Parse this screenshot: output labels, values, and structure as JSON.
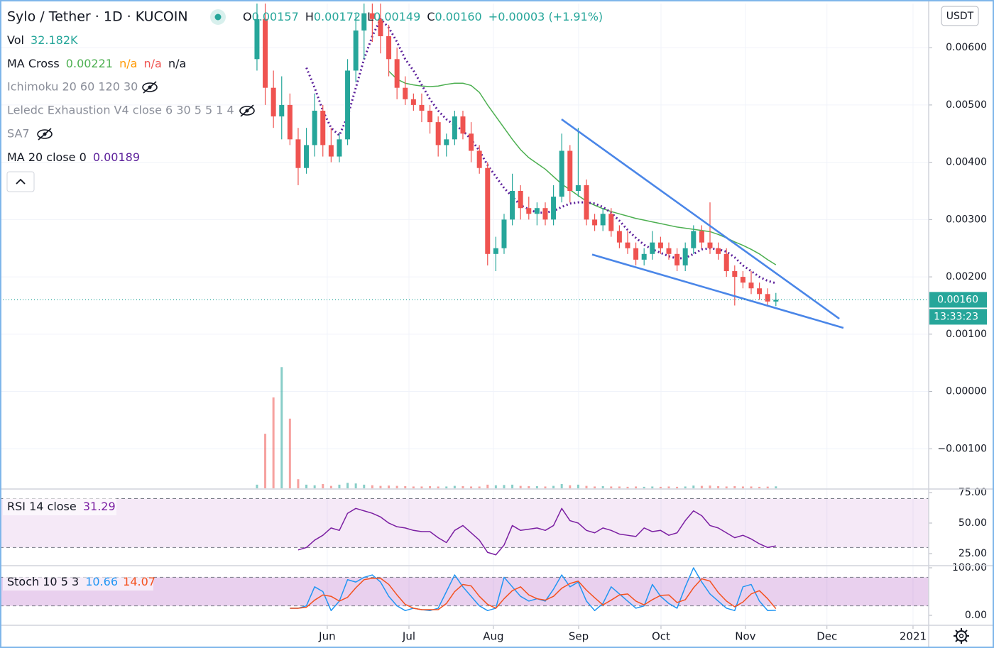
{
  "chart_data": [
    {
      "type": "candlestick",
      "title": "Sylo / Tether · 1D · KUCOIN",
      "ohlc": [
        {
          "label": "O",
          "value": "0.00157"
        },
        {
          "label": "H",
          "value": "0.00172"
        },
        {
          "label": "L",
          "value": "0.00149"
        },
        {
          "label": "C",
          "value": "0.00160"
        }
      ],
      "change": "+0.00003 (+1.91%)",
      "currency_button": "USDT",
      "countdown": "13:33:23",
      "categories": [
        null,
        null,
        null,
        null,
        null,
        null,
        null,
        null,
        null,
        null,
        null,
        null,
        null,
        null,
        null,
        null,
        null,
        null,
        null,
        null,
        null,
        null,
        null,
        null,
        null,
        null,
        null,
        null,
        null,
        null,
        null,
        null,
        null,
        null,
        null,
        null,
        null,
        null,
        null,
        null,
        null,
        null,
        null,
        null,
        null,
        null,
        null,
        null,
        null,
        null,
        null,
        null,
        null,
        null,
        null,
        null,
        null,
        null,
        null,
        null,
        null,
        null,
        null,
        null
      ],
      "open": [
        0.0058,
        0.0065,
        0.0053,
        0.0048,
        0.005,
        0.0044,
        0.0039,
        0.0043,
        0.0049,
        0.0043,
        0.0041,
        0.0044,
        0.0056,
        0.0063,
        0.0066,
        0.0065,
        0.0062,
        0.0058,
        0.0053,
        0.0051,
        0.005,
        0.0049,
        0.0047,
        0.0043,
        0.0044,
        0.0048,
        0.0045,
        0.0042,
        0.0039,
        0.0024,
        0.0025,
        0.003,
        0.0035,
        0.0032,
        0.0031,
        0.0032,
        0.003,
        0.0034,
        0.0042,
        0.0035,
        0.0036,
        0.003,
        0.0029,
        0.0031,
        0.0028,
        0.0026,
        0.0025,
        0.0023,
        0.0024,
        0.0026,
        0.0025,
        0.0024,
        0.0022,
        0.0025,
        0.0028,
        0.0026,
        0.0025,
        0.0024,
        0.0021,
        0.002,
        0.0019,
        0.0018,
        0.0017,
        0.00157
      ],
      "high": [
        0.0068,
        0.0068,
        0.0056,
        0.0055,
        0.0052,
        0.0046,
        0.0046,
        0.0052,
        0.005,
        0.0046,
        0.0045,
        0.0058,
        0.0066,
        0.0068,
        0.0068,
        0.0068,
        0.0064,
        0.006,
        0.0055,
        0.0052,
        0.0052,
        0.005,
        0.0048,
        0.0045,
        0.0049,
        0.0049,
        0.0047,
        0.0043,
        0.004,
        0.0027,
        0.0031,
        0.0038,
        0.0036,
        0.0034,
        0.0033,
        0.0033,
        0.0036,
        0.0045,
        0.0043,
        0.0046,
        0.0037,
        0.0031,
        0.0032,
        0.0032,
        0.0029,
        0.0028,
        0.0026,
        0.0025,
        0.0028,
        0.0027,
        0.0026,
        0.0025,
        0.0026,
        0.0029,
        0.0029,
        0.0033,
        0.0026,
        0.0025,
        0.0022,
        0.0021,
        0.0021,
        0.0019,
        0.0018,
        0.00172
      ],
      "low": [
        0.0056,
        0.005,
        0.0046,
        0.0044,
        0.0043,
        0.0036,
        0.0038,
        0.0041,
        0.0041,
        0.004,
        0.004,
        0.0043,
        0.0054,
        0.0058,
        0.0061,
        0.0059,
        0.0055,
        0.0051,
        0.005,
        0.0049,
        0.0047,
        0.0045,
        0.0041,
        0.0041,
        0.0043,
        0.0044,
        0.004,
        0.0038,
        0.0022,
        0.0021,
        0.0024,
        0.0029,
        0.003,
        0.003,
        0.0029,
        0.0029,
        0.0029,
        0.0033,
        0.0033,
        0.0034,
        0.0029,
        0.0028,
        0.0028,
        0.0027,
        0.0025,
        0.0024,
        0.0022,
        0.0022,
        0.0023,
        0.0024,
        0.0023,
        0.0021,
        0.0021,
        0.0024,
        0.0025,
        0.0024,
        0.0023,
        0.002,
        0.0015,
        0.0018,
        0.0017,
        0.0016,
        0.0015,
        0.00149
      ],
      "close": [
        0.0065,
        0.0053,
        0.0048,
        0.005,
        0.0044,
        0.0039,
        0.0043,
        0.0049,
        0.0043,
        0.0041,
        0.0044,
        0.0056,
        0.0063,
        0.0066,
        0.0065,
        0.0062,
        0.0058,
        0.0053,
        0.0051,
        0.005,
        0.0049,
        0.0047,
        0.0043,
        0.0044,
        0.0048,
        0.0045,
        0.0042,
        0.0039,
        0.0024,
        0.0025,
        0.003,
        0.0035,
        0.0032,
        0.0031,
        0.0032,
        0.003,
        0.0034,
        0.0042,
        0.0035,
        0.0036,
        0.003,
        0.0029,
        0.0031,
        0.0028,
        0.0026,
        0.0025,
        0.0023,
        0.0024,
        0.0026,
        0.0025,
        0.0024,
        0.0022,
        0.0025,
        0.0028,
        0.0026,
        0.0025,
        0.0024,
        0.0021,
        0.002,
        0.0019,
        0.0018,
        0.0017,
        0.00157,
        0.0016
      ],
      "up_color": "#26a69a",
      "down_color": "#ef5350",
      "volume": {
        "name": "Vol",
        "last_label": "32.182K",
        "vlim": [
          0,
          8000
        ],
        "values": [
          60,
          900,
          1500,
          2000,
          1150,
          150,
          60,
          50,
          70,
          40,
          60,
          90,
          80,
          60,
          50,
          40,
          45,
          40,
          35,
          30,
          30,
          35,
          30,
          30,
          40,
          35,
          30,
          30,
          60,
          50,
          55,
          60,
          40,
          35,
          35,
          30,
          40,
          70,
          50,
          60,
          40,
          30,
          35,
          30,
          30,
          25,
          30,
          25,
          30,
          25,
          30,
          25,
          30,
          45,
          40,
          45,
          35,
          30,
          35,
          30,
          30,
          25,
          28,
          32.182
        ]
      },
      "series": [
        {
          "name": "MA Cross",
          "color": "#4caf50",
          "style": "solid",
          "legend_values": [
            "0.00221",
            "n/a",
            "n/a",
            "n/a"
          ],
          "legend_colors": [
            "#4caf50",
            "#ff9800",
            "#ef5350",
            "#131722"
          ],
          "values": [
            null,
            null,
            null,
            null,
            null,
            null,
            null,
            null,
            null,
            null,
            null,
            null,
            null,
            null,
            null,
            null,
            0.00559,
            0.00545,
            0.00538,
            0.00535,
            0.00533,
            0.00532,
            0.00533,
            0.00536,
            0.00538,
            0.00538,
            0.00534,
            0.00522,
            0.005,
            0.0048,
            0.0046,
            0.0044,
            0.00422,
            0.00408,
            0.00398,
            0.00388,
            0.00375,
            0.00362,
            0.00352,
            0.00342,
            0.00332,
            0.00325,
            0.00319,
            0.00314,
            0.0031,
            0.00306,
            0.00302,
            0.00299,
            0.00296,
            0.00293,
            0.0029,
            0.00287,
            0.00285,
            0.00283,
            0.00281,
            0.00279,
            0.00274,
            0.00268,
            0.00261,
            0.00255,
            0.00248,
            0.0024,
            0.0023,
            0.00221
          ]
        },
        {
          "name": "MA 20 close 0",
          "color": "#5b1f9a",
          "style": "dotted",
          "legend_values": [
            "0.00189"
          ],
          "legend_colors": [
            "#5b1f9a"
          ],
          "values": [
            null,
            null,
            null,
            null,
            null,
            null,
            0.00565,
            0.0053,
            0.0049,
            0.0046,
            0.00447,
            0.0048,
            0.0053,
            0.0058,
            0.0062,
            0.0065,
            0.00635,
            0.0061,
            0.0058,
            0.0056,
            0.00535,
            0.0051,
            0.0049,
            0.00475,
            0.00465,
            0.00455,
            0.0044,
            0.0042,
            0.00395,
            0.00375,
            0.00355,
            0.0034,
            0.00325,
            0.00318,
            0.00312,
            0.00312,
            0.00315,
            0.00322,
            0.00328,
            0.0033,
            0.0033,
            0.00328,
            0.00322,
            0.00312,
            0.00298,
            0.00282,
            0.00268,
            0.00256,
            0.00248,
            0.00242,
            0.00236,
            0.00232,
            0.00233,
            0.0024,
            0.00248,
            0.0025,
            0.00248,
            0.00244,
            0.00234,
            0.0022,
            0.0021,
            0.002,
            0.00193,
            0.00189
          ]
        }
      ],
      "hidden_indicators": [
        "Ichimoku 20 60 120 30",
        "Leledc Exhaustion V4 close 6 30 5 5 1 4",
        "SA7"
      ],
      "trendlines": [
        {
          "x": [
            36.98,
            70.7
          ],
          "y": [
            0.00475,
            0.00127
          ]
        },
        {
          "x": [
            40.69,
            71.2
          ],
          "y": [
            0.00239,
            0.00111
          ]
        }
      ],
      "trendline_color": "#4a86e8",
      "last_price": {
        "value": 0.0016,
        "label": "0.00160"
      },
      "xlim": [
        -31.2,
        81.55
      ],
      "xticks": [
        {
          "value": 8.53,
          "label": "Jun"
        },
        {
          "value": 18.45,
          "label": "Jul"
        },
        {
          "value": 28.7,
          "label": "Aug"
        },
        {
          "value": 39.05,
          "label": "Sep"
        },
        {
          "value": 49.05,
          "label": "Oct"
        },
        {
          "value": 59.3,
          "label": "Nov"
        },
        {
          "value": 69.2,
          "label": "Dec"
        },
        {
          "value": 79.65,
          "label": "2021"
        }
      ],
      "ylim": [
        -0.00169,
        0.00677
      ],
      "yticks": [
        {
          "value": -0.001,
          "label": "−0.00100"
        },
        {
          "value": 0,
          "label": "0.00000"
        },
        {
          "value": 0.001,
          "label": "0.00100"
        },
        {
          "value": 0.002,
          "label": "0.00200"
        },
        {
          "value": 0.003,
          "label": "0.00300"
        },
        {
          "value": 0.004,
          "label": "0.00400"
        },
        {
          "value": 0.005,
          "label": "0.00500"
        },
        {
          "value": 0.006,
          "label": "0.00600"
        }
      ],
      "grid": true
    },
    {
      "type": "line",
      "title": "RSI 14 close",
      "series": [
        {
          "name": "RSI 14 close",
          "color": "#7b1fa2",
          "legend_values": [
            "31.29"
          ],
          "legend_colors": [
            "#7b1fa2"
          ],
          "values": [
            null,
            null,
            null,
            null,
            null,
            28,
            30,
            36,
            40,
            46,
            44,
            58,
            62,
            60,
            58,
            55,
            50,
            47,
            46,
            44,
            43,
            43,
            38,
            34,
            44,
            48,
            42,
            36,
            26,
            24,
            32,
            48,
            44,
            45,
            46,
            44,
            48,
            62,
            52,
            50,
            44,
            42,
            46,
            44,
            41,
            40,
            39,
            46,
            43,
            44,
            40,
            42,
            52,
            60,
            56,
            48,
            46,
            42,
            38,
            40,
            37,
            33,
            30,
            31.29
          ]
        }
      ],
      "band": [
        30,
        70
      ],
      "band_color": "rgba(156,39,176,0.1)",
      "ylim": [
        15.7,
        77.3
      ],
      "yticks": [
        {
          "value": 25,
          "label": "25.00"
        },
        {
          "value": 50,
          "label": "50.00"
        },
        {
          "value": 75,
          "label": "75.00"
        }
      ],
      "grid": false
    },
    {
      "type": "line",
      "title": "Stoch 10 5 3",
      "series": [
        {
          "color": "#2196f3",
          "legend_values": [
            "10.66"
          ],
          "legend_colors": [
            "#2196f3"
          ],
          "values": [
            null,
            null,
            null,
            null,
            15,
            15,
            20,
            60,
            50,
            10,
            30,
            75,
            70,
            80,
            85,
            70,
            40,
            20,
            10,
            15,
            12,
            10,
            15,
            50,
            85,
            60,
            40,
            20,
            10,
            15,
            80,
            60,
            40,
            30,
            35,
            30,
            55,
            85,
            60,
            70,
            30,
            10,
            25,
            60,
            45,
            30,
            15,
            20,
            65,
            40,
            25,
            15,
            60,
            100,
            70,
            45,
            30,
            15,
            10,
            60,
            65,
            30,
            10,
            10.66
          ]
        },
        {
          "color": "#f4511e",
          "legend_values": [
            "14.07"
          ],
          "legend_colors": [
            "#f4511e"
          ],
          "values": [
            null,
            null,
            null,
            null,
            15,
            15,
            17,
            32,
            43,
            40,
            30,
            38,
            58,
            75,
            78,
            78,
            65,
            43,
            23,
            15,
            12,
            12,
            12,
            25,
            50,
            65,
            62,
            40,
            23,
            15,
            35,
            52,
            60,
            43,
            35,
            32,
            40,
            57,
            67,
            72,
            53,
            37,
            22,
            32,
            43,
            45,
            30,
            22,
            33,
            42,
            43,
            27,
            33,
            58,
            77,
            72,
            48,
            30,
            18,
            28,
            45,
            52,
            35,
            14.07
          ]
        }
      ],
      "band": [
        20,
        80
      ],
      "band_color": "rgba(156,39,176,0.22)",
      "ylim": [
        -19.4,
        103
      ],
      "yticks": [
        {
          "value": 0,
          "label": "0.00"
        },
        {
          "value": 100,
          "label": "100.00"
        }
      ],
      "grid": false
    }
  ]
}
